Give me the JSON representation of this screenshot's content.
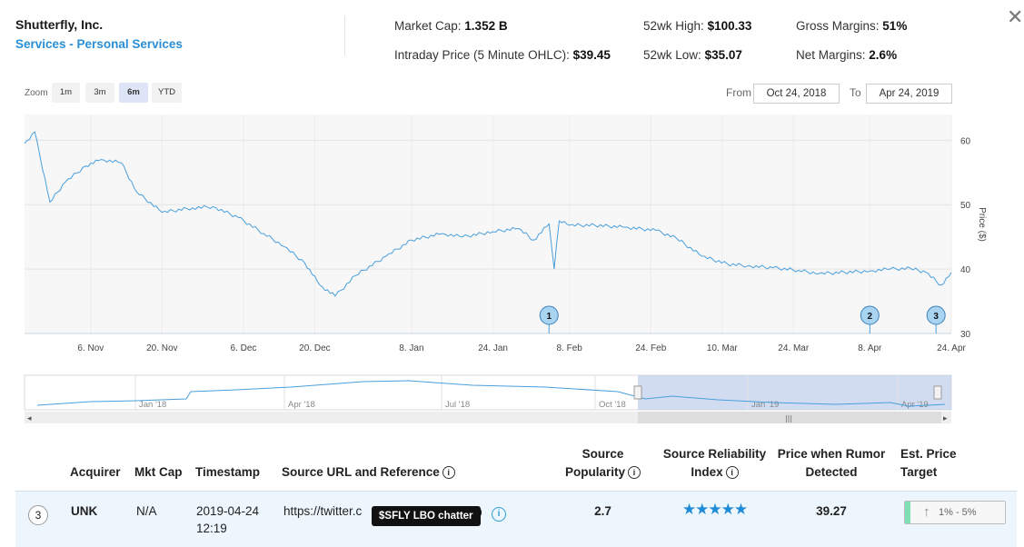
{
  "header": {
    "company": "Shutterfly, Inc.",
    "sector": "Services - Personal Services",
    "market_cap_label": "Market Cap:",
    "market_cap_value": "1.352 B",
    "intraday_label": "Intraday Price (5 Minute OHLC):",
    "intraday_value": "$39.45",
    "high_label": "52wk High:",
    "high_value": "$100.33",
    "low_label": "52wk Low:",
    "low_value": "$35.07",
    "gross_label": "Gross Margins:",
    "gross_value": "51%",
    "net_label": "Net Margins:",
    "net_value": "2.6%",
    "close_glyph": "✕"
  },
  "zoom": {
    "label": "Zoom",
    "buttons": [
      "1m",
      "3m",
      "6m",
      "YTD"
    ],
    "active": "6m",
    "from_label": "From",
    "from_value": "Oct 24, 2018",
    "to_label": "To",
    "to_value": "Apr 24, 2019"
  },
  "chart_data": {
    "type": "line",
    "ylabel": "Price ($)",
    "y_ticks": [
      "60",
      "50",
      "40",
      "30"
    ],
    "ylim": [
      30,
      64
    ],
    "x_ticks": [
      "6. Nov",
      "20. Nov",
      "6. Dec",
      "20. Dec",
      "8. Jan",
      "24. Jan",
      "8. Feb",
      "24. Feb",
      "10. Mar",
      "24. Mar",
      "8. Apr",
      "24. Apr"
    ],
    "series": [
      {
        "x": [
          "2018-10-24",
          "2018-10-26",
          "2018-10-29",
          "2018-11-01",
          "2018-11-05",
          "2018-11-08",
          "2018-11-12",
          "2018-11-15",
          "2018-11-20",
          "2018-11-26",
          "2018-11-30",
          "2018-12-05",
          "2018-12-10",
          "2018-12-14",
          "2018-12-18",
          "2018-12-21",
          "2018-12-24",
          "2018-12-28",
          "2019-01-03",
          "2019-01-08",
          "2019-01-14",
          "2019-01-18",
          "2019-01-24",
          "2019-01-29",
          "2019-02-01",
          "2019-02-04",
          "2019-02-05",
          "2019-02-06",
          "2019-02-08",
          "2019-02-13",
          "2019-02-19",
          "2019-02-25",
          "2019-03-01",
          "2019-03-06",
          "2019-03-11",
          "2019-03-15",
          "2019-03-20",
          "2019-03-25",
          "2019-03-29",
          "2019-04-03",
          "2019-04-08",
          "2019-04-12",
          "2019-04-16",
          "2019-04-19",
          "2019-04-22",
          "2019-04-24"
        ],
        "values": [
          59.5,
          61.3,
          50.4,
          53.5,
          56.0,
          57.0,
          56.5,
          52.0,
          48.8,
          49.5,
          49.7,
          48.0,
          45.5,
          43.5,
          41.0,
          37.5,
          35.8,
          39.0,
          42.0,
          44.5,
          45.5,
          45.0,
          45.8,
          46.3,
          44.5,
          47.0,
          40.0,
          47.5,
          46.8,
          46.8,
          46.5,
          46.0,
          44.8,
          42.0,
          40.8,
          40.5,
          40.2,
          39.8,
          39.3,
          39.5,
          39.7,
          40.0,
          40.1,
          39.5,
          37.5,
          39.45
        ]
      }
    ],
    "flags": [
      "1",
      "2",
      "3"
    ]
  },
  "navigator": {
    "labels": [
      "Jan '18",
      "Apr '18",
      "Jul '18",
      "Oct '18",
      "Jan '19",
      "Apr '19"
    ],
    "scroll_left": "◂",
    "scroll_right": "▸",
    "scroll_grip": "|||"
  },
  "table": {
    "headers": {
      "acquirer": "Acquirer",
      "mktcap": "Mkt Cap",
      "timestamp": "Timestamp",
      "source_url": "Source URL and Reference",
      "popularity_1": "Source",
      "popularity_2": "Popularity",
      "reliability_1": "Source Reliability",
      "reliability_2": "Index",
      "price_detected_1": "Price when Rumor",
      "price_detected_2": "Detected",
      "target_1": "Est. Price",
      "target_2": "Target"
    },
    "rows": [
      {
        "index": "3",
        "acquirer": "UNK",
        "mktcap": "N/A",
        "timestamp_date": "2019-04-24",
        "timestamp_time": "12:19",
        "source_url": "https://twitter.c",
        "tooltip": "$SFLY LBO chatter",
        "popularity": "2.7",
        "reliability_stars": "★★★★★",
        "price_detected": "39.27",
        "target": "1% - 5%"
      }
    ]
  }
}
